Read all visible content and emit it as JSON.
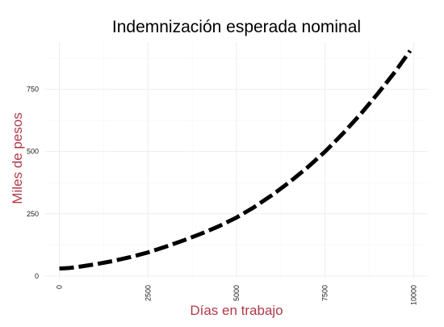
{
  "colors": {
    "axis_title": "#b03a48",
    "series": "#000000"
  },
  "chart_data": {
    "type": "line",
    "title": "Indemnización esperada nominal",
    "xlabel": "Días en trabajo",
    "ylabel": "Miles de pesos",
    "xlim": [
      -400,
      10400
    ],
    "ylim": [
      -10,
      940
    ],
    "x_ticks": [
      "0",
      "2500",
      "5000",
      "7500",
      "10000"
    ],
    "y_ticks": [
      "0",
      "250",
      "500",
      "750"
    ],
    "grid": true,
    "line_style": "dashed",
    "series": [
      {
        "x": [
          0,
          250,
          500,
          1000,
          1500,
          2000,
          2500,
          3000,
          3500,
          4000,
          4500,
          5000,
          5500,
          6000,
          6500,
          7000,
          7500,
          8000,
          8500,
          9000,
          9500,
          9900
        ],
        "values": [
          30,
          32,
          36,
          47,
          60,
          76,
          95,
          118,
          143,
          170,
          200,
          235,
          277,
          325,
          378,
          436,
          500,
          572,
          650,
          735,
          825,
          905
        ]
      }
    ]
  }
}
